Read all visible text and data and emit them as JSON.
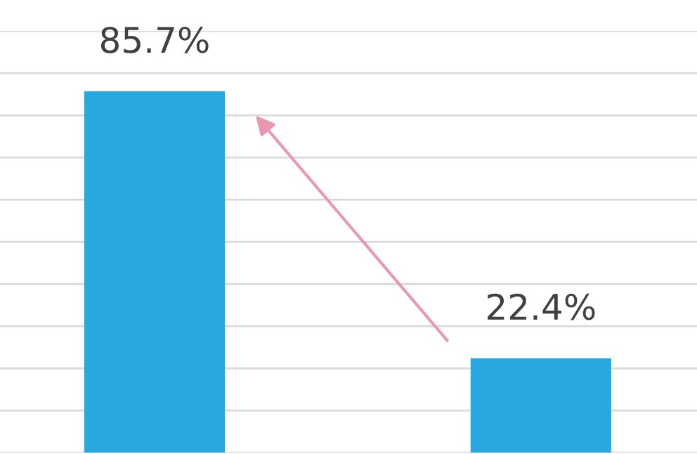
{
  "chart_data": {
    "type": "bar",
    "categories": [
      null,
      null
    ],
    "values": [
      85.7,
      22.4
    ],
    "color": "#29a8e0",
    "value_labels": [
      "85.7%",
      "22.4%"
    ],
    "ylim": [
      0,
      100
    ],
    "yticks": [
      {
        "value": 0,
        "label": null
      },
      {
        "value": 10,
        "label": null
      },
      {
        "value": 20,
        "label": null
      },
      {
        "value": 30,
        "label": null
      },
      {
        "value": 40,
        "label": null
      },
      {
        "value": 50,
        "label": null
      },
      {
        "value": 60,
        "label": null
      },
      {
        "value": 70,
        "label": null
      },
      {
        "value": 80,
        "label": null
      },
      {
        "value": 90,
        "label": null
      },
      {
        "value": 100,
        "label": null
      }
    ],
    "grid": "y"
  }
}
